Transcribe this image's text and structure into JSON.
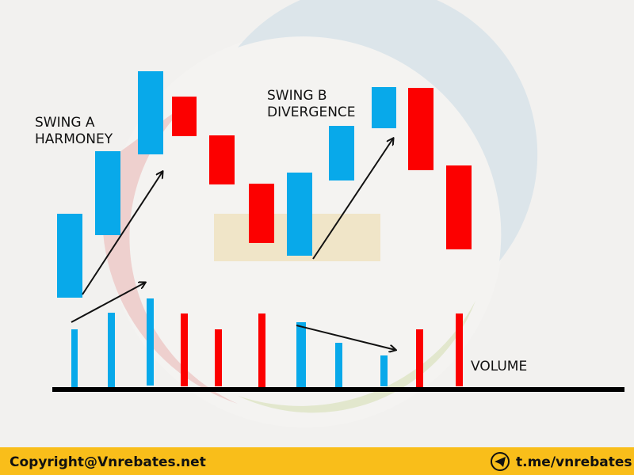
{
  "labels": {
    "swing_a": [
      "SWING A",
      "HARMONEY"
    ],
    "swing_b": [
      "SWING B",
      "DIVERGENCE"
    ],
    "volume": "VOLUME"
  },
  "footer": {
    "copyright": "Copyright@Vnrebates.net",
    "link": "t.me/vnrebates"
  }
}
